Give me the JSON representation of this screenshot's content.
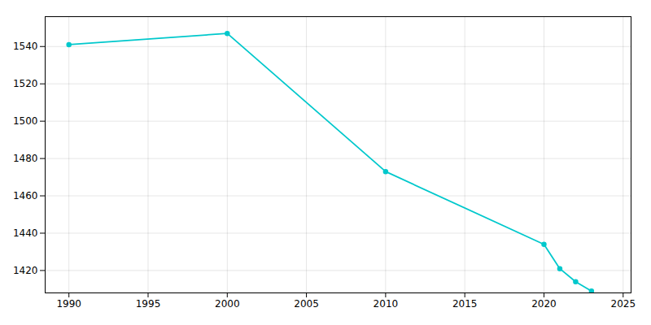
{
  "chart_data": {
    "type": "line",
    "x": [
      1990,
      2000,
      2010,
      2020,
      2021,
      2022,
      2023
    ],
    "values": [
      1541,
      1547,
      1473,
      1434,
      1421,
      1414,
      1409
    ],
    "color": "#00c8cc",
    "marker": "circle",
    "xlim": [
      1988.5,
      2025.5
    ],
    "ylim": [
      1408,
      1556
    ],
    "xticks": [
      1990,
      1995,
      2000,
      2005,
      2010,
      2015,
      2020,
      2025
    ],
    "yticks": [
      1420,
      1440,
      1460,
      1480,
      1500,
      1520,
      1540
    ],
    "grid": true
  }
}
